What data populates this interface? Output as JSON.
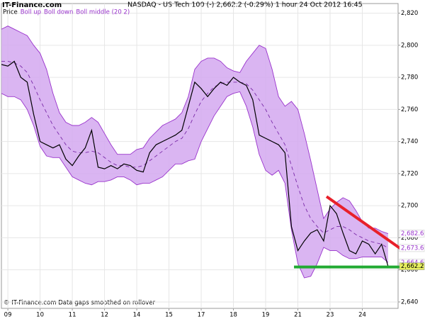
{
  "chart_data": {
    "type": "line",
    "brand": "IT-Finance.com",
    "title": "NASDAQ - US Tech 100 (-)     2,662.2 (-0.29%)      1 hour   24 Oct 2012 16:45",
    "footer": "© IT-Finance.com Data gaps smoothed on rollover",
    "xlim": [
      0,
      123.1
    ],
    "ylim": [
      2636,
      2826
    ],
    "xticks": [
      {
        "value": 2,
        "label": "09"
      },
      {
        "value": 12,
        "label": "10"
      },
      {
        "value": 22,
        "label": "11"
      },
      {
        "value": 32,
        "label": "12"
      },
      {
        "value": 42,
        "label": "14"
      },
      {
        "value": 52,
        "label": "15"
      },
      {
        "value": 62,
        "label": "17"
      },
      {
        "value": 72,
        "label": "18"
      },
      {
        "value": 82,
        "label": "19"
      },
      {
        "value": 92,
        "label": "21"
      },
      {
        "value": 102,
        "label": "23"
      },
      {
        "value": 112,
        "label": "24"
      }
    ],
    "yticks": [
      {
        "value": 2640,
        "label": "2,640"
      },
      {
        "value": 2660,
        "label": "2,660"
      },
      {
        "value": 2680,
        "label": "2,680"
      },
      {
        "value": 2700,
        "label": "2,700"
      },
      {
        "value": 2720,
        "label": "2,720"
      },
      {
        "value": 2740,
        "label": "2,740"
      },
      {
        "value": 2760,
        "label": "2,760"
      },
      {
        "value": 2780,
        "label": "2,780"
      },
      {
        "value": 2800,
        "label": "2,800"
      },
      {
        "value": 2820,
        "label": "2,820"
      }
    ],
    "grid": true,
    "band_fill": "#d4a8f0",
    "x": [
      0,
      2,
      4,
      6,
      8,
      10,
      12,
      14,
      16,
      18,
      20,
      22,
      24,
      26,
      28,
      30,
      32,
      34,
      36,
      38,
      40,
      42,
      44,
      46,
      48,
      50,
      52,
      54,
      56,
      58,
      60,
      62,
      64,
      66,
      68,
      70,
      72,
      74,
      76,
      78,
      80,
      82,
      84,
      86,
      88,
      90,
      92,
      94,
      96,
      98,
      100,
      102,
      104,
      106,
      108,
      110,
      112,
      114,
      116,
      118,
      120
    ],
    "series": [
      {
        "name": "Price",
        "color": "#000000",
        "values": [
          2788,
          2787,
          2790,
          2780,
          2777,
          2757,
          2740,
          2738,
          2736,
          2738,
          2729,
          2725,
          2731,
          2736,
          2747,
          2724,
          2723,
          2725,
          2723,
          2726,
          2725,
          2722,
          2721,
          2733,
          2738,
          2740,
          2742,
          2744,
          2747,
          2762,
          2777,
          2773,
          2768,
          2773,
          2777,
          2775,
          2780,
          2777,
          2775,
          2766,
          2744,
          2742,
          2740,
          2738,
          2733,
          2687,
          2672,
          2678,
          2683,
          2685,
          2678,
          2700,
          2695,
          2683,
          2672,
          2670,
          2678,
          2676,
          2670,
          2676,
          2662.2
        ]
      },
      {
        "name": "Boll up",
        "color": "#9933cc",
        "values": [
          2810,
          2812,
          2810,
          2808,
          2806,
          2800,
          2795,
          2785,
          2770,
          2758,
          2752,
          2750,
          2750,
          2752,
          2755,
          2752,
          2745,
          2738,
          2732,
          2732,
          2732,
          2735,
          2736,
          2742,
          2746,
          2750,
          2752,
          2754,
          2758,
          2768,
          2785,
          2790,
          2792,
          2792,
          2790,
          2786,
          2784,
          2783,
          2790,
          2795,
          2800,
          2798,
          2785,
          2768,
          2762,
          2765,
          2760,
          2745,
          2728,
          2710,
          2692,
          2698,
          2702,
          2705,
          2703,
          2697,
          2690,
          2686,
          2686,
          2684,
          2682.6
        ]
      },
      {
        "name": "Boll down",
        "color": "#9933cc",
        "values": [
          2770,
          2768,
          2768,
          2766,
          2760,
          2750,
          2737,
          2731,
          2730,
          2730,
          2724,
          2718,
          2716,
          2714,
          2713,
          2715,
          2715,
          2716,
          2718,
          2718,
          2716,
          2713,
          2714,
          2714,
          2716,
          2718,
          2722,
          2726,
          2726,
          2728,
          2729,
          2740,
          2748,
          2756,
          2762,
          2768,
          2770,
          2771,
          2762,
          2749,
          2732,
          2722,
          2719,
          2722,
          2714,
          2685,
          2664,
          2655,
          2656,
          2664,
          2674,
          2672,
          2672,
          2669,
          2667,
          2667,
          2668,
          2668,
          2668,
          2668,
          2664.6
        ]
      },
      {
        "name": "Boll middle (20 2)",
        "color": "#7a2aa8",
        "dashed": true,
        "values": [
          2790,
          2790,
          2789,
          2787,
          2783,
          2775,
          2766,
          2758,
          2750,
          2744,
          2738,
          2734,
          2733,
          2733,
          2734,
          2733,
          2730,
          2727,
          2725,
          2725,
          2724,
          2724,
          2725,
          2728,
          2731,
          2734,
          2737,
          2740,
          2742,
          2748,
          2757,
          2765,
          2770,
          2774,
          2776,
          2777,
          2777,
          2777,
          2776,
          2772,
          2766,
          2760,
          2752,
          2745,
          2738,
          2725,
          2712,
          2700,
          2692,
          2687,
          2683,
          2685,
          2687,
          2687,
          2685,
          2682,
          2680,
          2678,
          2677,
          2676,
          2673.6
        ]
      }
    ],
    "last_values": [
      {
        "value": 2682.6,
        "label": "2,682.6",
        "color": "#9933cc"
      },
      {
        "value": 2673.6,
        "label": "2,673.6",
        "color": "#9933cc"
      },
      {
        "value": 2664.6,
        "label": "2,664.6",
        "color": "#9933cc"
      },
      {
        "value": 2662.2,
        "label": "2,662.2",
        "color": "#000000",
        "background": "#e8f060"
      }
    ],
    "trend_lines": [
      {
        "color": "#e8202a",
        "x": [
          100.9,
          124.8
        ],
        "y": [
          2705.7,
          2671.9
        ]
      },
      {
        "color": "#22aa33",
        "x": [
          90.8,
          123.7
        ],
        "y": [
          2661.8,
          2661.8
        ]
      }
    ]
  }
}
